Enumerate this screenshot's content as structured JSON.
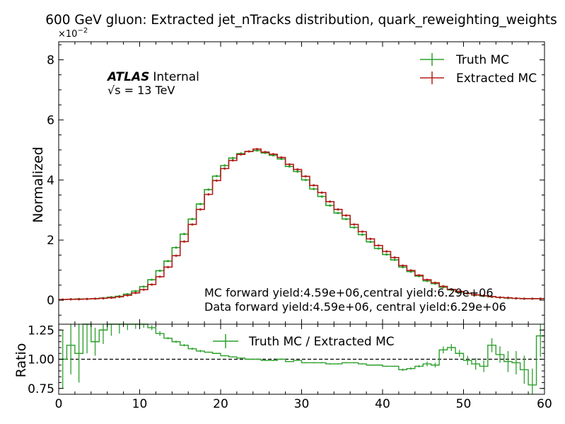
{
  "chart_data": {
    "type": "histogram-step-with-ratio",
    "title": "600 GeV gluon: Extracted jet_nTracks distribution, quark_reweighting_weights",
    "scale_label": "×10",
    "scale_exponent": "−2",
    "ylabel": "Normalized",
    "xlim": [
      0,
      60
    ],
    "ylim": [
      -0.8,
      8.6
    ],
    "x_ticks": [
      "0",
      "10",
      "20",
      "30",
      "40",
      "50",
      "60"
    ],
    "x_tick_values": [
      0,
      10,
      20,
      30,
      40,
      50,
      60
    ],
    "y_ticks": [
      "0",
      "2",
      "4",
      "6",
      "8"
    ],
    "y_tick_values": [
      0,
      2,
      4,
      6,
      8
    ],
    "atlas": {
      "bold": "ATLAS",
      "rest": "Internal",
      "energy": "√s =  13 TeV"
    },
    "legend": {
      "placement": "top-right",
      "entries": [
        "Truth MC",
        "Extracted MC"
      ]
    },
    "annotations": [
      "MC forward yield:4.59e+06,central yield:6.29e+06",
      "Data forward yield:4.59e+06, central yield:6.29e+06"
    ],
    "colors": {
      "truth": "#2ca02c",
      "extracted": "#b2201e"
    },
    "series": [
      {
        "name": "Truth MC",
        "values": [
          0.02,
          0.03,
          0.04,
          0.04,
          0.05,
          0.07,
          0.1,
          0.13,
          0.2,
          0.3,
          0.45,
          0.68,
          0.98,
          1.3,
          1.75,
          2.2,
          2.7,
          3.2,
          3.68,
          4.13,
          4.48,
          4.73,
          4.88,
          4.95,
          4.98,
          4.9,
          4.82,
          4.7,
          4.45,
          4.28,
          4.0,
          3.7,
          3.45,
          3.15,
          2.9,
          2.7,
          2.42,
          2.18,
          1.94,
          1.72,
          1.52,
          1.34,
          1.1,
          0.95,
          0.8,
          0.64,
          0.55,
          0.43,
          0.34,
          0.27,
          0.22,
          0.17,
          0.14,
          0.11,
          0.09,
          0.07,
          0.06,
          0.05,
          0.05,
          0.05
        ]
      },
      {
        "name": "Extracted MC",
        "values": [
          0.02,
          0.03,
          0.03,
          0.04,
          0.05,
          0.06,
          0.08,
          0.11,
          0.16,
          0.24,
          0.35,
          0.52,
          0.78,
          1.1,
          1.48,
          1.95,
          2.52,
          3.02,
          3.52,
          3.98,
          4.38,
          4.65,
          4.85,
          4.95,
          5.03,
          4.93,
          4.86,
          4.75,
          4.52,
          4.35,
          4.12,
          3.82,
          3.58,
          3.28,
          3.02,
          2.82,
          2.52,
          2.28,
          2.04,
          1.82,
          1.62,
          1.42,
          1.15,
          0.99,
          0.83,
          0.68,
          0.58,
          0.46,
          0.36,
          0.29,
          0.23,
          0.18,
          0.15,
          0.12,
          0.09,
          0.08,
          0.06,
          0.05,
          0.05,
          0.05
        ]
      }
    ],
    "ratio": {
      "ylabel": "Ratio",
      "ylim": [
        0.7,
        1.3
      ],
      "y_ticks": [
        "0.75",
        "1.00",
        "1.25"
      ],
      "y_tick_values": [
        0.75,
        1.0,
        1.25
      ],
      "reference": 1.0,
      "legend": "Truth MC / Extracted MC",
      "values": [
        1.0,
        1.12,
        1.05,
        1.3,
        1.15,
        1.25,
        1.3,
        1.3,
        1.3,
        1.3,
        1.3,
        1.27,
        1.22,
        1.18,
        1.15,
        1.12,
        1.09,
        1.07,
        1.06,
        1.05,
        1.03,
        1.02,
        1.01,
        1.0,
        1.0,
        0.99,
        0.99,
        1.0,
        0.98,
        0.99,
        0.97,
        0.97,
        0.97,
        0.96,
        0.96,
        0.97,
        0.97,
        0.96,
        0.95,
        0.95,
        0.94,
        0.94,
        0.91,
        0.92,
        0.94,
        0.96,
        0.95,
        1.08,
        1.1,
        1.05,
        0.99,
        0.96,
        0.94,
        1.12,
        1.04,
        0.98,
        0.97,
        0.91,
        0.78,
        1.2
      ],
      "errors": [
        0.25,
        0.25,
        0.25,
        0.25,
        0.12,
        0.12,
        0.1,
        0.08,
        0.05,
        0.04,
        0.03,
        0.02,
        0.02,
        0.01,
        0.01,
        0.01,
        0.01,
        0.01,
        0.005,
        0.005,
        0.005,
        0.005,
        0.005,
        0.005,
        0.005,
        0.005,
        0.005,
        0.005,
        0.005,
        0.005,
        0.005,
        0.005,
        0.005,
        0.005,
        0.005,
        0.005,
        0.005,
        0.005,
        0.005,
        0.005,
        0.005,
        0.005,
        0.01,
        0.01,
        0.01,
        0.02,
        0.02,
        0.03,
        0.03,
        0.03,
        0.04,
        0.05,
        0.05,
        0.06,
        0.07,
        0.09,
        0.1,
        0.12,
        0.14,
        0.18
      ]
    }
  }
}
